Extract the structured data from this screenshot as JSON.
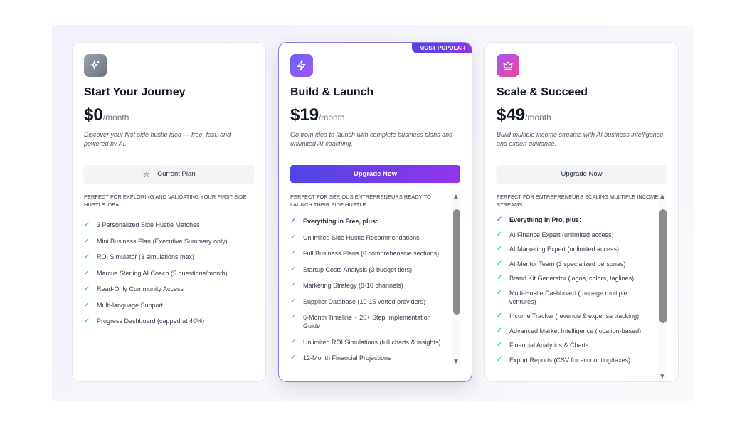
{
  "plans": [
    {
      "icon": "sparkles-icon",
      "title": "Start Your Journey",
      "price": "$0",
      "period": "/month",
      "description": "Discover your first side hustle idea — free, fast, and powered by AI.",
      "button": "Current Plan",
      "button_icon": "star-icon",
      "heading": "Perfect for exploring and validating your first side hustle idea",
      "features": [
        "3 Personalized Side Hustle Matches",
        "Mini Business Plan (Executive Summary only)",
        "ROI Simulator (3 simulations max)",
        "Marcus Sterling AI Coach (5 questions/month)",
        "Read-Only Community Access",
        "Multi-language Support",
        "Progress Dashboard (capped at 40%)"
      ]
    },
    {
      "icon": "lightning-icon",
      "badge": "MOST POPULAR",
      "title": "Build & Launch",
      "price": "$19",
      "period": "/month",
      "description": "Go from idea to launch with complete business plans and unlimited AI coaching.",
      "button": "Upgrade Now",
      "heading": "Perfect for serious entrepreneurs ready to launch their side hustle",
      "lead": "Everything in Free, plus:",
      "features": [
        "Unlimited Side Hustle Recommendations",
        "Full Business Plans (6 comprehensive sections)",
        "Startup Costs Analysis (3 budget tiers)",
        "Marketing Strategy (8-10 channels)",
        "Supplier Database (10-15 vetted providers)",
        "6-Month Timeline + 20+ Step Implementation Guide",
        "Unlimited ROI Simulations (full charts & insights)",
        "12-Month Financial Projections"
      ]
    },
    {
      "icon": "crown-icon",
      "title": "Scale & Succeed",
      "price": "$49",
      "period": "/month",
      "description": "Build multiple income streams with AI business intelligence and expert guidance.",
      "button": "Upgrade Now",
      "heading": "Perfect for entrepreneurs scaling multiple income streams",
      "lead": "Everything in Pro, plus:",
      "features": [
        "AI Finance Expert (unlimited access)",
        "AI Marketing Expert (unlimited access)",
        "AI Mentor Team (3 specialized personas)",
        "Brand Kit Generator (logos, colors, taglines)",
        "Multi-Hustle Dashboard (manage multiple ventures)",
        "Income Tracker (revenue & expense tracking)",
        "Advanced Market Intelligence (location-based)",
        "Financial Analytics & Charts",
        "Export Reports (CSV for accounting/taxes)"
      ]
    }
  ],
  "colors": {
    "accent_start": "#4f46e5",
    "accent_end": "#9333ea",
    "check": "#22c55e"
  }
}
